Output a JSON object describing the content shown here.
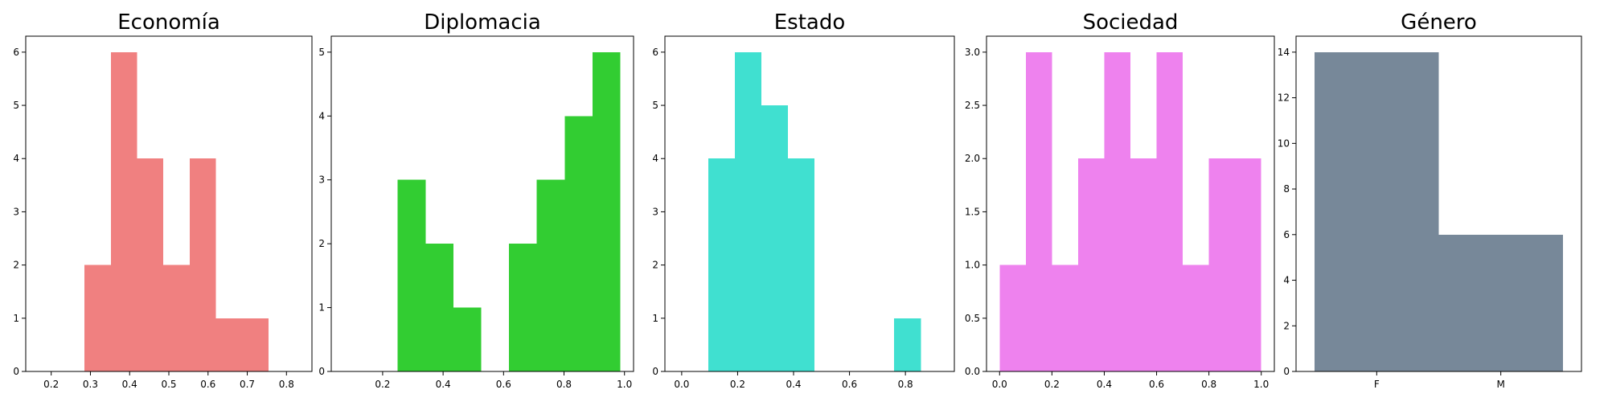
{
  "chart_data": [
    {
      "type": "bar",
      "title": "Economía",
      "color": "#f08080",
      "xlim": [
        0.135,
        0.865
      ],
      "ylim": [
        0,
        6.3
      ],
      "xticks": [
        0.2,
        0.3,
        0.4,
        0.5,
        0.6,
        0.7,
        0.8
      ],
      "yticks": [
        0,
        1,
        2,
        3,
        4,
        5,
        6
      ],
      "bins": [
        {
          "x0": 0.285,
          "x1": 0.352,
          "value": 2
        },
        {
          "x0": 0.352,
          "x1": 0.419,
          "value": 6
        },
        {
          "x0": 0.419,
          "x1": 0.486,
          "value": 4
        },
        {
          "x0": 0.486,
          "x1": 0.553,
          "value": 2
        },
        {
          "x0": 0.553,
          "x1": 0.62,
          "value": 4
        },
        {
          "x0": 0.62,
          "x1": 0.687,
          "value": 1
        },
        {
          "x0": 0.687,
          "x1": 0.754,
          "value": 1
        }
      ]
    },
    {
      "type": "bar",
      "title": "Diplomacia",
      "color": "#32cd32",
      "xlim": [
        0.03,
        1.03
      ],
      "ylim": [
        0,
        5.25
      ],
      "xticks": [
        0.2,
        0.4,
        0.6,
        0.8,
        1.0
      ],
      "yticks": [
        0,
        1,
        2,
        3,
        4,
        5
      ],
      "bins": [
        {
          "x0": 0.25,
          "x1": 0.342,
          "value": 3
        },
        {
          "x0": 0.342,
          "x1": 0.434,
          "value": 2
        },
        {
          "x0": 0.434,
          "x1": 0.526,
          "value": 1
        },
        {
          "x0": 0.526,
          "x1": 0.618,
          "value": 0
        },
        {
          "x0": 0.618,
          "x1": 0.71,
          "value": 2
        },
        {
          "x0": 0.71,
          "x1": 0.802,
          "value": 3
        },
        {
          "x0": 0.802,
          "x1": 0.894,
          "value": 4
        },
        {
          "x0": 0.894,
          "x1": 0.986,
          "value": 5
        }
      ]
    },
    {
      "type": "bar",
      "title": "Estado",
      "color": "#40e0d0",
      "xlim": [
        -0.06,
        0.975
      ],
      "ylim": [
        0,
        6.3
      ],
      "xticks": [
        0.0,
        0.2,
        0.4,
        0.6,
        0.8
      ],
      "yticks": [
        0,
        1,
        2,
        3,
        4,
        5,
        6
      ],
      "bins": [
        {
          "x0": 0.095,
          "x1": 0.19,
          "value": 4
        },
        {
          "x0": 0.19,
          "x1": 0.285,
          "value": 6
        },
        {
          "x0": 0.285,
          "x1": 0.38,
          "value": 5
        },
        {
          "x0": 0.38,
          "x1": 0.475,
          "value": 4
        },
        {
          "x0": 0.76,
          "x1": 0.855,
          "value": 1
        }
      ]
    },
    {
      "type": "bar",
      "title": "Sociedad",
      "color": "#ee82ee",
      "xlim": [
        -0.05,
        1.05
      ],
      "ylim": [
        0,
        3.15
      ],
      "xticks": [
        0.0,
        0.2,
        0.4,
        0.6,
        0.8,
        1.0
      ],
      "yticks": [
        0.0,
        0.5,
        1.0,
        1.5,
        2.0,
        2.5,
        3.0
      ],
      "bins": [
        {
          "x0": 0.0,
          "x1": 0.1,
          "value": 1
        },
        {
          "x0": 0.1,
          "x1": 0.2,
          "value": 3
        },
        {
          "x0": 0.2,
          "x1": 0.3,
          "value": 1
        },
        {
          "x0": 0.3,
          "x1": 0.4,
          "value": 2
        },
        {
          "x0": 0.4,
          "x1": 0.5,
          "value": 3
        },
        {
          "x0": 0.5,
          "x1": 0.6,
          "value": 2
        },
        {
          "x0": 0.6,
          "x1": 0.7,
          "value": 3
        },
        {
          "x0": 0.7,
          "x1": 0.8,
          "value": 1
        },
        {
          "x0": 0.8,
          "x1": 0.9,
          "value": 2
        },
        {
          "x0": 0.9,
          "x1": 1.0,
          "value": 2
        }
      ]
    },
    {
      "type": "bar",
      "title": "Género",
      "color": "#778899",
      "xlim": [
        -0.65,
        1.65
      ],
      "ylim": [
        0,
        14.7
      ],
      "xticks": [
        0,
        1
      ],
      "xticklabels": [
        "F",
        "M"
      ],
      "yticks": [
        0,
        2,
        4,
        6,
        8,
        10,
        12,
        14
      ],
      "bins": [
        {
          "x0": -0.5,
          "x1": 0.5,
          "value": 14
        },
        {
          "x0": 0.5,
          "x1": 1.5,
          "value": 6
        }
      ]
    }
  ]
}
